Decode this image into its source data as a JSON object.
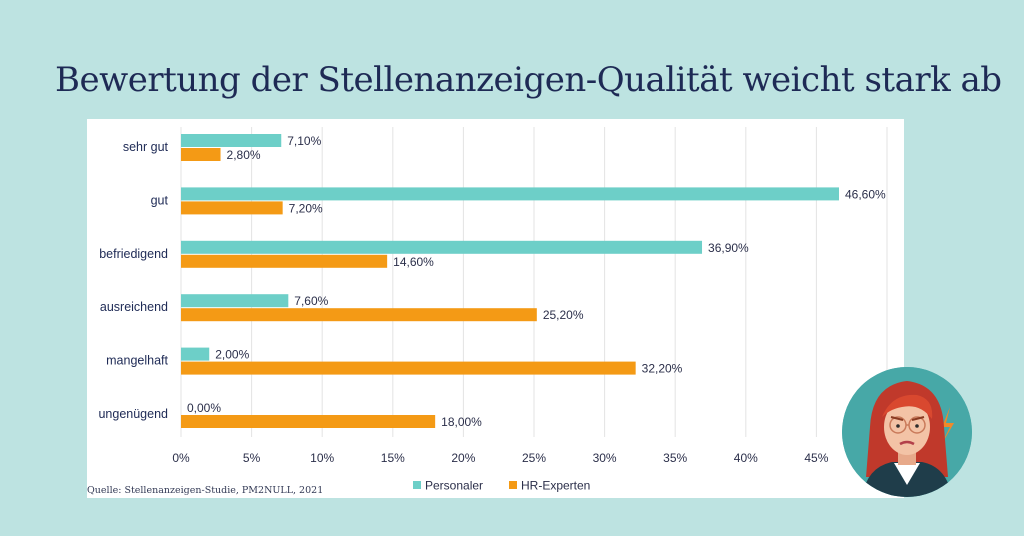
{
  "title": "Bewertung der Stellenanzeigen-Qualität weicht stark ab",
  "source": "Quelle: Stellenanzeigen-Studie, PM2NULL, 2021",
  "colors": {
    "personaler": "#6dcfc8",
    "hr_experten": "#f49a15",
    "background": "#bde3e1"
  },
  "avatar": {
    "icon": "frustrated-woman-illustration"
  },
  "chart_data": {
    "type": "bar",
    "orientation": "horizontal",
    "categories": [
      "sehr gut",
      "gut",
      "befriedigend",
      "ausreichend",
      "mangelhaft",
      "ungenügend"
    ],
    "series": [
      {
        "name": "Personaler",
        "color": "#6dcfc8",
        "values": [
          7.1,
          46.6,
          36.9,
          7.6,
          2.0,
          0.0
        ],
        "labels": [
          "7,10%",
          "46,60%",
          "36,90%",
          "7,60%",
          "2,00%",
          "0,00%"
        ]
      },
      {
        "name": "HR-Experten",
        "color": "#f49a15",
        "values": [
          2.8,
          7.2,
          14.6,
          25.2,
          32.2,
          18.0
        ],
        "labels": [
          "2,80%",
          "7,20%",
          "14,60%",
          "25,20%",
          "32,20%",
          "18,00%"
        ]
      }
    ],
    "xlim": [
      0,
      50
    ],
    "xticks": [
      "0%",
      "5%",
      "10%",
      "15%",
      "20%",
      "25%",
      "30%",
      "35%",
      "40%",
      "45%"
    ],
    "grid": true,
    "legend": "bottom"
  }
}
